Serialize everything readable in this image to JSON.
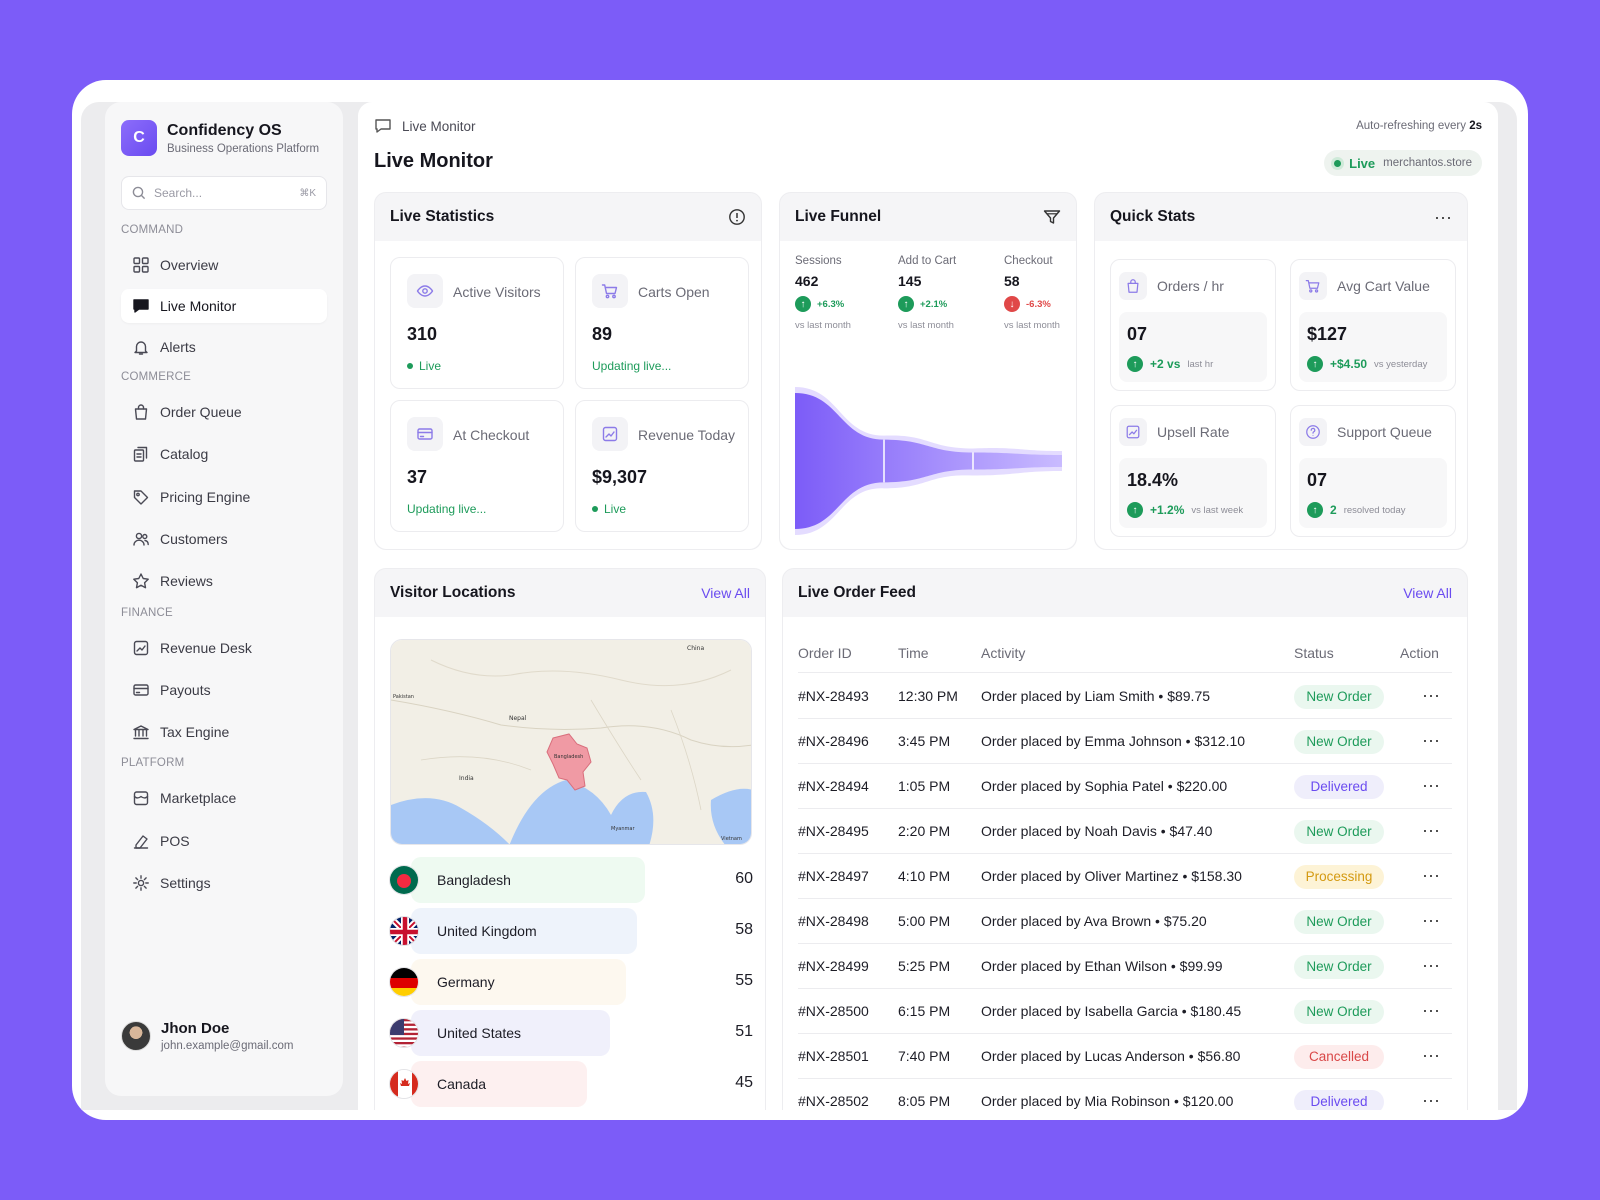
{
  "brand": {
    "logo_letter": "C",
    "name": "Confidency OS",
    "subtitle": "Business Operations Platform"
  },
  "search": {
    "placeholder": "Search...",
    "shortcut": "⌘K"
  },
  "sidebar": {
    "sections": [
      {
        "label": "COMMAND",
        "items": [
          {
            "label": "Overview",
            "icon": "grid-icon"
          },
          {
            "label": "Live Monitor",
            "icon": "chat-icon",
            "active": true
          },
          {
            "label": "Alerts",
            "icon": "bell-icon"
          }
        ]
      },
      {
        "label": "COMMERCE",
        "items": [
          {
            "label": "Order Queue",
            "icon": "bag-icon"
          },
          {
            "label": "Catalog",
            "icon": "catalog-icon"
          },
          {
            "label": "Pricing Engine",
            "icon": "tag-icon"
          },
          {
            "label": "Customers",
            "icon": "users-icon"
          },
          {
            "label": "Reviews",
            "icon": "star-icon"
          }
        ]
      },
      {
        "label": "FINANCE",
        "items": [
          {
            "label": "Revenue Desk",
            "icon": "chart-icon"
          },
          {
            "label": "Payouts",
            "icon": "card-icon"
          },
          {
            "label": "Tax Engine",
            "icon": "bank-icon"
          }
        ]
      },
      {
        "label": "PLATFORM",
        "items": [
          {
            "label": "Marketplace",
            "icon": "store-icon"
          },
          {
            "label": "POS",
            "icon": "pos-icon"
          },
          {
            "label": "Settings",
            "icon": "gear-icon"
          }
        ]
      }
    ]
  },
  "user": {
    "name": "Jhon Doe",
    "email": "john.example@gmail.com"
  },
  "header": {
    "breadcrumb": "Live Monitor",
    "title": "Live Monitor",
    "refresh_prefix": "Auto-refreshing every ",
    "refresh_value": "2s",
    "live_label": "Live",
    "domain": "merchantos.store"
  },
  "live_statistics": {
    "title": "Live Statistics",
    "tiles": [
      {
        "label": "Active Visitors",
        "value": "310",
        "status": "Live",
        "icon": "eye-icon"
      },
      {
        "label": "Carts Open",
        "value": "89",
        "status": "Updating live...",
        "icon": "cart-icon"
      },
      {
        "label": "At Checkout",
        "value": "37",
        "status": "Updating live...",
        "icon": "card-icon"
      },
      {
        "label": "Revenue Today",
        "value": "$9,307",
        "status": "Live",
        "icon": "chart-icon"
      }
    ]
  },
  "live_funnel": {
    "title": "Live Funnel",
    "stages": [
      {
        "label": "Sessions",
        "value": "462",
        "delta": "+6.3%",
        "direction": "up",
        "note": "vs last month"
      },
      {
        "label": "Add to Cart",
        "value": "145",
        "delta": "+2.1%",
        "direction": "up",
        "note": "vs last month"
      },
      {
        "label": "Checkout",
        "value": "58",
        "delta": "-6.3%",
        "direction": "down",
        "note": "vs last month"
      }
    ],
    "colors": {
      "primary": "#7c5cf8",
      "light": "#c9bbff"
    }
  },
  "quick_stats": {
    "title": "Quick Stats",
    "tiles": [
      {
        "label": "Orders / hr",
        "value": "07",
        "delta": "+2 vs",
        "note": "last hr",
        "icon": "bag-icon"
      },
      {
        "label": "Avg Cart Value",
        "value": "$127",
        "delta": "+$4.50",
        "note": "vs yesterday",
        "icon": "cart-icon"
      },
      {
        "label": "Upsell Rate",
        "value": "18.4%",
        "delta": "+1.2%",
        "note": "vs last week",
        "icon": "chart-icon"
      },
      {
        "label": "Support Queue",
        "value": "07",
        "delta": "2",
        "note": "resolved today",
        "icon": "help-icon"
      }
    ]
  },
  "visitor_locations": {
    "title": "Visitor Locations",
    "view_all": "View All",
    "map_labels": [
      "China",
      "Nepal",
      "Bangladesh",
      "India",
      "Myanmar",
      "Vietnam",
      "Pakistan"
    ],
    "countries": [
      {
        "name": "Bangladesh",
        "count": 60,
        "bar_color": "#eefaf1"
      },
      {
        "name": "United Kingdom",
        "count": 58,
        "bar_color": "#eef3fb"
      },
      {
        "name": "Germany",
        "count": 55,
        "bar_color": "#fdf8ef"
      },
      {
        "name": "United States",
        "count": 51,
        "bar_color": "#f0f0fb"
      },
      {
        "name": "Canada",
        "count": 45,
        "bar_color": "#fdf0f0"
      }
    ]
  },
  "order_feed": {
    "title": "Live Order Feed",
    "view_all": "View All",
    "columns": [
      "Order ID",
      "Time",
      "Activity",
      "Status",
      "Action"
    ],
    "rows": [
      {
        "id": "#NX-28493",
        "time": "12:30 PM",
        "activity": "Order placed by Liam Smith • $89.75",
        "status": "New Order"
      },
      {
        "id": "#NX-28496",
        "time": "3:45 PM",
        "activity": "Order placed by Emma Johnson • $312.10",
        "status": "New Order"
      },
      {
        "id": "#NX-28494",
        "time": "1:05 PM",
        "activity": "Order placed by Sophia Patel • $220.00",
        "status": "Delivered"
      },
      {
        "id": "#NX-28495",
        "time": "2:20 PM",
        "activity": "Order placed by Noah Davis • $47.40",
        "status": "New Order"
      },
      {
        "id": "#NX-28497",
        "time": "4:10 PM",
        "activity": "Order placed by Oliver Martinez • $158.30",
        "status": "Processing"
      },
      {
        "id": "#NX-28498",
        "time": "5:00 PM",
        "activity": "Order placed by Ava Brown • $75.20",
        "status": "New Order"
      },
      {
        "id": "#NX-28499",
        "time": "5:25 PM",
        "activity": "Order placed by Ethan Wilson • $99.99",
        "status": "New Order"
      },
      {
        "id": "#NX-28500",
        "time": "6:15 PM",
        "activity": "Order placed by Isabella Garcia • $180.45",
        "status": "New Order"
      },
      {
        "id": "#NX-28501",
        "time": "7:40 PM",
        "activity": "Order placed by Lucas Anderson • $56.80",
        "status": "Cancelled"
      },
      {
        "id": "#NX-28502",
        "time": "8:05 PM",
        "activity": "Order placed by Mia Robinson • $120.00",
        "status": "Delivered"
      }
    ],
    "status_colors": {
      "New Order": {
        "bg": "#eaf7ef",
        "fg": "#1d9b5a"
      },
      "Delivered": {
        "bg": "#efeefb",
        "fg": "#6a4bf0"
      },
      "Processing": {
        "bg": "#fdf3d6",
        "fg": "#d49a12"
      },
      "Cancelled": {
        "bg": "#fdecec",
        "fg": "#d94848"
      }
    },
    "action_icon": "more-icon"
  },
  "colors": {
    "accent": "#7c5cf8",
    "success": "#1d9b5a",
    "danger": "#e04848"
  }
}
